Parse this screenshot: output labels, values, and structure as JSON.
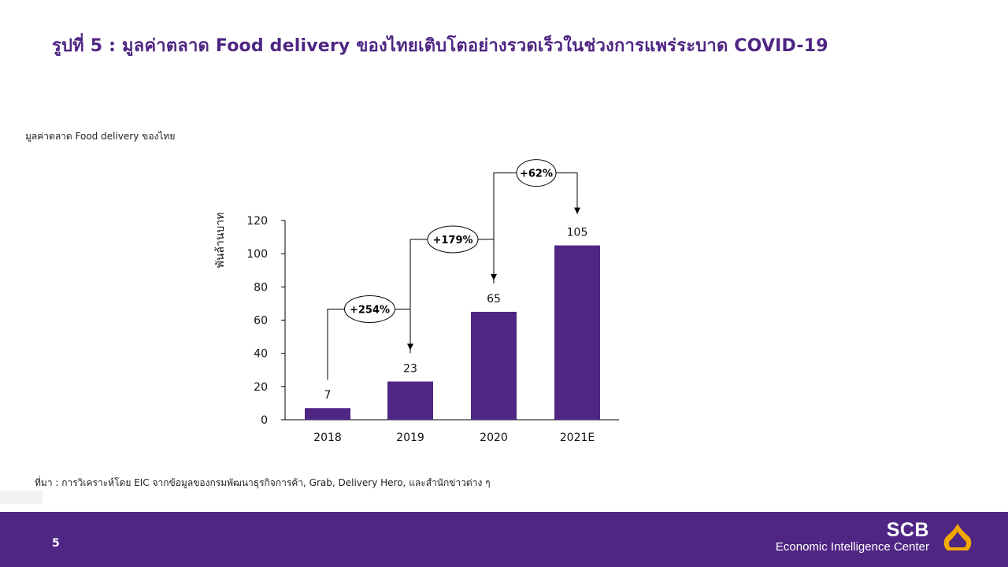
{
  "page": {
    "title": "รูปที่ 5 : มูลค่าตลาด Food delivery ของไทยเติบโตอย่างรวดเร็วในช่วงการแพร่ระบาด COVID-19",
    "subtitle": "มูลค่าตลาด Food delivery ของไทย",
    "source": "ที่มา : การวิเคราะห์โดย EIC จากข้อมูลของกรมพัฒนาธุรกิจการค้า, Grab, Delivery Hero, และสำนักข่าวต่าง ๆ",
    "page_number": "5"
  },
  "brand": {
    "name": "SCB",
    "subtitle": "Economic Intelligence Center"
  },
  "colors": {
    "primary": "#4f2683",
    "logo": "#f2a900",
    "bar": "#4f2683"
  },
  "chart_data": {
    "type": "bar",
    "categories": [
      "2018",
      "2019",
      "2020",
      "2021E"
    ],
    "values": [
      7,
      23,
      65,
      105
    ],
    "data_labels": [
      "7",
      "23",
      "65",
      "105"
    ],
    "ylabel": "พันล้านบาท",
    "ylim": [
      0,
      120
    ],
    "yticks": [
      0,
      20,
      40,
      60,
      80,
      100,
      120
    ],
    "grid": false,
    "growth": [
      {
        "from": 0,
        "to": 1,
        "label": "+254%"
      },
      {
        "from": 1,
        "to": 2,
        "label": "+179%"
      },
      {
        "from": 2,
        "to": 3,
        "label": "+62%"
      }
    ]
  }
}
